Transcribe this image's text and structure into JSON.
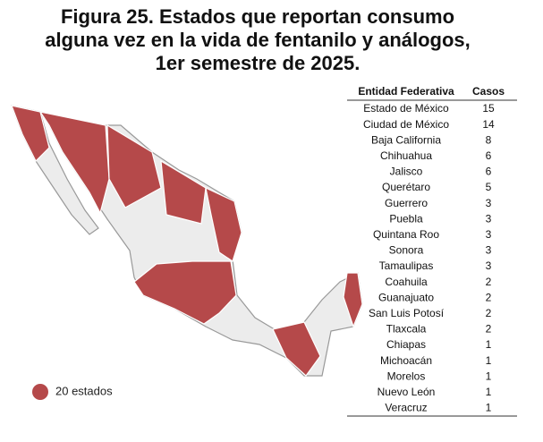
{
  "header": {
    "title_lines": [
      "Figura 25. Estados que reportan consumo",
      "alguna vez en la vida de fentanilo y análogos,",
      "1er semestre de 2025."
    ]
  },
  "table": {
    "columns": [
      "Entidad Federativa",
      "Casos"
    ],
    "rows": [
      [
        "Estado de México",
        15
      ],
      [
        "Ciudad de México",
        14
      ],
      [
        "Baja California",
        8
      ],
      [
        "Chihuahua",
        6
      ],
      [
        "Jalisco",
        6
      ],
      [
        "Querétaro",
        5
      ],
      [
        "Guerrero",
        3
      ],
      [
        "Puebla",
        3
      ],
      [
        "Quintana Roo",
        3
      ],
      [
        "Sonora",
        3
      ],
      [
        "Tamaulipas",
        3
      ],
      [
        "Coahuila",
        2
      ],
      [
        "Guanajuato",
        2
      ],
      [
        "San Luis Potosí",
        2
      ],
      [
        "Tlaxcala",
        2
      ],
      [
        "Chiapas",
        1
      ],
      [
        "Michoacán",
        1
      ],
      [
        "Morelos",
        1
      ],
      [
        "Nuevo León",
        1
      ],
      [
        "Veracruz",
        1
      ]
    ]
  },
  "legend": {
    "label": "20 estados"
  }
}
